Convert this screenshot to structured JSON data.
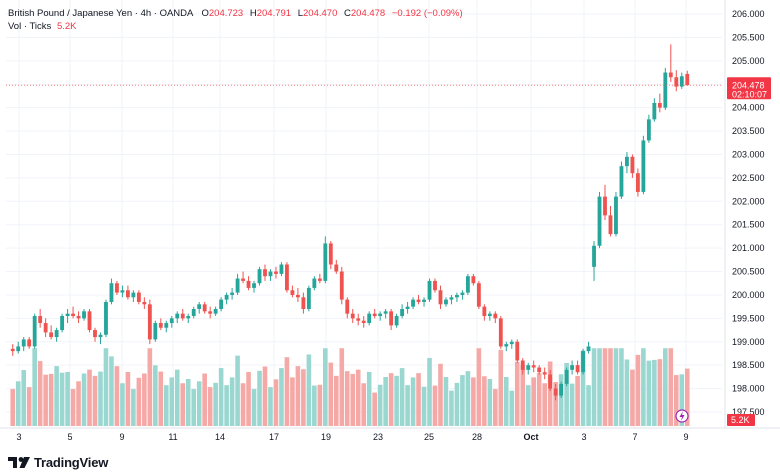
{
  "legend": {
    "symbol": "British Pound / Japanese Yen · 4h · OANDA",
    "o_label": "O",
    "o_value": "204.723",
    "h_label": "H",
    "h_value": "204.791",
    "l_label": "L",
    "l_value": "204.470",
    "c_label": "C",
    "c_value": "204.478",
    "change": "−0.192 (−0.09%)",
    "vol_label": "Vol · Ticks",
    "vol_value": "5.2K"
  },
  "price_badge": {
    "price": "204.478",
    "countdown": "02:10:07"
  },
  "volume_badge": "5.2K",
  "colors": {
    "up": "#26a69a",
    "down": "#ef5350",
    "vol_up": "#9bd7d1",
    "vol_down": "#f5a9a7"
  },
  "price_axis": {
    "ticks": [
      "206.000",
      "205.500",
      "205.000",
      "204.500",
      "204.000",
      "203.500",
      "203.000",
      "202.500",
      "202.000",
      "201.500",
      "201.000",
      "200.500",
      "200.000",
      "199.500",
      "199.000",
      "198.500",
      "198.000",
      "197.500"
    ],
    "range": [
      197.5,
      206.0
    ]
  },
  "time_axis": {
    "labels": [
      "3",
      "5",
      "9",
      "11",
      "14",
      "17",
      "19",
      "23",
      "25",
      "28",
      "Oct",
      "3",
      "7",
      "9"
    ]
  },
  "brand": "TradingView",
  "chart_data": {
    "type": "candlestick",
    "current_price": 204.478,
    "ylim": [
      197.5,
      206.0
    ],
    "candles": [
      [
        198.85,
        198.95,
        198.7,
        198.8
      ],
      [
        198.8,
        199.0,
        198.75,
        198.9
      ],
      [
        198.9,
        199.1,
        198.8,
        199.05
      ],
      [
        199.05,
        199.1,
        198.85,
        198.9
      ],
      [
        198.9,
        199.6,
        198.85,
        199.55
      ],
      [
        199.55,
        199.7,
        199.3,
        199.4
      ],
      [
        199.4,
        199.5,
        199.1,
        199.2
      ],
      [
        199.2,
        199.35,
        199.05,
        199.1
      ],
      [
        199.1,
        199.3,
        199.0,
        199.25
      ],
      [
        199.25,
        199.6,
        199.2,
        199.55
      ],
      [
        199.55,
        199.7,
        199.4,
        199.6
      ],
      [
        199.6,
        199.75,
        199.5,
        199.55
      ],
      [
        199.55,
        199.65,
        199.4,
        199.5
      ],
      [
        199.5,
        199.7,
        199.45,
        199.65
      ],
      [
        199.65,
        199.7,
        199.2,
        199.25
      ],
      [
        199.25,
        199.3,
        199.0,
        199.1
      ],
      [
        199.1,
        199.2,
        198.95,
        199.15
      ],
      [
        199.15,
        199.9,
        199.1,
        199.85
      ],
      [
        199.85,
        200.35,
        199.8,
        200.25
      ],
      [
        200.25,
        200.3,
        200.0,
        200.05
      ],
      [
        200.05,
        200.2,
        199.95,
        200.1
      ],
      [
        200.1,
        200.2,
        199.9,
        199.95
      ],
      [
        199.95,
        200.1,
        199.85,
        200.05
      ],
      [
        200.05,
        200.1,
        199.8,
        199.85
      ],
      [
        199.85,
        199.95,
        199.7,
        199.8
      ],
      [
        199.8,
        199.9,
        198.95,
        199.05
      ],
      [
        199.05,
        199.45,
        199.0,
        199.4
      ],
      [
        199.4,
        199.5,
        199.25,
        199.3
      ],
      [
        199.3,
        199.45,
        199.2,
        199.4
      ],
      [
        199.4,
        199.55,
        199.3,
        199.5
      ],
      [
        199.5,
        199.65,
        199.4,
        199.6
      ],
      [
        199.6,
        199.7,
        199.45,
        199.5
      ],
      [
        199.5,
        199.6,
        199.4,
        199.55
      ],
      [
        199.55,
        199.75,
        199.5,
        199.7
      ],
      [
        199.7,
        199.85,
        199.6,
        199.8
      ],
      [
        199.8,
        199.85,
        199.6,
        199.65
      ],
      [
        199.65,
        199.75,
        199.5,
        199.6
      ],
      [
        199.6,
        199.75,
        199.55,
        199.7
      ],
      [
        199.7,
        199.95,
        199.65,
        199.9
      ],
      [
        199.9,
        200.05,
        199.8,
        200.0
      ],
      [
        200.0,
        200.15,
        199.9,
        200.05
      ],
      [
        200.05,
        200.45,
        200.0,
        200.35
      ],
      [
        200.35,
        200.5,
        200.25,
        200.3
      ],
      [
        200.3,
        200.4,
        200.1,
        200.15
      ],
      [
        200.15,
        200.3,
        200.05,
        200.25
      ],
      [
        200.25,
        200.6,
        200.2,
        200.55
      ],
      [
        200.55,
        200.65,
        200.3,
        200.4
      ],
      [
        200.4,
        200.55,
        200.3,
        200.5
      ],
      [
        200.5,
        200.6,
        200.35,
        200.45
      ],
      [
        200.45,
        200.7,
        200.4,
        200.65
      ],
      [
        200.65,
        200.7,
        200.05,
        200.1
      ],
      [
        200.1,
        200.2,
        199.95,
        200.0
      ],
      [
        200.0,
        200.15,
        199.85,
        199.95
      ],
      [
        199.95,
        200.05,
        199.6,
        199.7
      ],
      [
        199.7,
        200.2,
        199.65,
        200.15
      ],
      [
        200.15,
        200.4,
        200.1,
        200.35
      ],
      [
        200.35,
        200.45,
        200.25,
        200.3
      ],
      [
        200.3,
        201.25,
        200.25,
        201.1
      ],
      [
        201.1,
        201.15,
        200.55,
        200.65
      ],
      [
        200.65,
        200.75,
        200.45,
        200.5
      ],
      [
        200.5,
        200.6,
        199.8,
        199.9
      ],
      [
        199.9,
        199.95,
        199.5,
        199.6
      ],
      [
        199.6,
        199.7,
        199.4,
        199.5
      ],
      [
        199.5,
        199.6,
        199.35,
        199.45
      ],
      [
        199.45,
        199.55,
        199.3,
        199.4
      ],
      [
        199.4,
        199.65,
        199.35,
        199.6
      ],
      [
        199.6,
        199.7,
        199.5,
        199.55
      ],
      [
        199.55,
        199.65,
        199.45,
        199.6
      ],
      [
        199.6,
        199.7,
        199.5,
        199.65
      ],
      [
        199.65,
        199.7,
        199.25,
        199.35
      ],
      [
        199.35,
        199.6,
        199.3,
        199.55
      ],
      [
        199.55,
        199.8,
        199.5,
        199.7
      ],
      [
        199.7,
        199.85,
        199.6,
        199.75
      ],
      [
        199.75,
        199.95,
        199.7,
        199.9
      ],
      [
        199.9,
        200.0,
        199.8,
        199.85
      ],
      [
        199.85,
        199.95,
        199.75,
        199.9
      ],
      [
        199.9,
        200.35,
        199.85,
        200.3
      ],
      [
        200.3,
        200.35,
        200.05,
        200.1
      ],
      [
        200.1,
        200.2,
        199.7,
        199.8
      ],
      [
        199.8,
        199.95,
        199.75,
        199.9
      ],
      [
        199.9,
        200.0,
        199.8,
        199.95
      ],
      [
        199.95,
        200.05,
        199.85,
        200.0
      ],
      [
        200.0,
        200.1,
        199.9,
        200.05
      ],
      [
        200.05,
        200.45,
        200.0,
        200.4
      ],
      [
        200.4,
        200.45,
        200.2,
        200.25
      ],
      [
        200.25,
        200.3,
        199.7,
        199.75
      ],
      [
        199.75,
        199.8,
        199.45,
        199.55
      ],
      [
        199.55,
        199.65,
        199.45,
        199.6
      ],
      [
        199.6,
        199.65,
        199.4,
        199.5
      ],
      [
        199.5,
        199.55,
        198.85,
        198.9
      ],
      [
        198.9,
        199.0,
        198.8,
        198.95
      ],
      [
        198.95,
        199.05,
        198.85,
        199.0
      ],
      [
        199.0,
        199.05,
        198.55,
        198.6
      ],
      [
        198.6,
        198.65,
        198.3,
        198.4
      ],
      [
        198.4,
        198.55,
        198.3,
        198.5
      ],
      [
        198.5,
        198.6,
        198.35,
        198.45
      ],
      [
        198.45,
        198.5,
        198.3,
        198.35
      ],
      [
        198.35,
        198.45,
        198.2,
        198.3
      ],
      [
        198.3,
        198.4,
        197.95,
        198.0
      ],
      [
        198.0,
        198.1,
        197.75,
        197.85
      ],
      [
        197.85,
        198.15,
        197.8,
        198.1
      ],
      [
        198.1,
        198.45,
        198.05,
        198.4
      ],
      [
        198.4,
        198.6,
        198.3,
        198.5
      ],
      [
        198.5,
        198.6,
        198.3,
        198.35
      ],
      [
        198.35,
        198.85,
        198.3,
        198.8
      ],
      [
        198.8,
        199.0,
        198.75,
        198.9
      ],
      [
        200.6,
        201.15,
        200.3,
        201.05
      ],
      [
        201.05,
        202.2,
        201.0,
        202.1
      ],
      [
        202.1,
        202.35,
        201.6,
        201.7
      ],
      [
        201.7,
        201.9,
        201.25,
        201.3
      ],
      [
        201.3,
        202.2,
        201.25,
        202.1
      ],
      [
        202.1,
        202.85,
        202.05,
        202.75
      ],
      [
        202.75,
        203.05,
        202.6,
        202.95
      ],
      [
        202.95,
        203.0,
        202.5,
        202.6
      ],
      [
        202.6,
        202.7,
        202.1,
        202.2
      ],
      [
        202.2,
        203.4,
        202.15,
        203.3
      ],
      [
        203.3,
        203.85,
        203.25,
        203.75
      ],
      [
        203.75,
        204.2,
        203.7,
        204.1
      ],
      [
        204.1,
        204.3,
        203.9,
        204.0
      ],
      [
        204.0,
        204.85,
        203.95,
        204.75
      ],
      [
        204.75,
        205.35,
        204.55,
        204.65
      ],
      [
        204.65,
        204.8,
        204.35,
        204.45
      ],
      [
        204.45,
        204.75,
        204.4,
        204.67
      ],
      [
        204.72,
        204.79,
        204.47,
        204.48
      ]
    ],
    "volume_range": [
      0,
      8000
    ]
  }
}
